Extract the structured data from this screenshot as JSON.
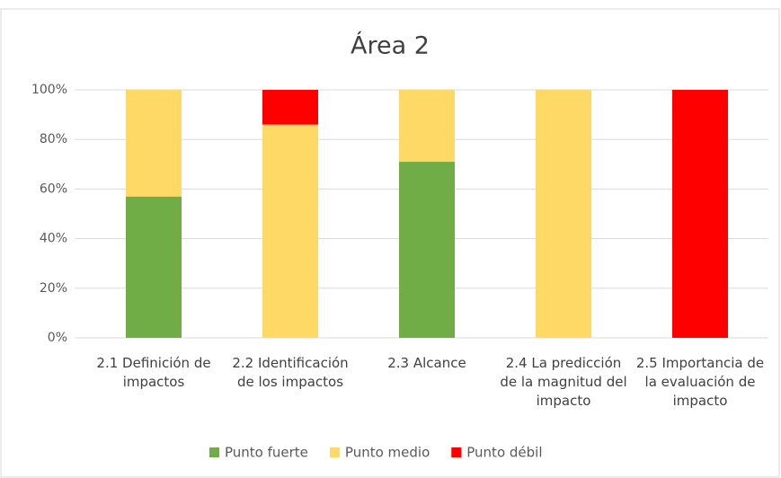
{
  "chart_data": {
    "type": "stacked_bar",
    "title": "Área 2",
    "categories": [
      "2.1 Definición de impactos",
      "2.2 Identificación de los impactos",
      "2.3 Alcance",
      "2.4 La predicción de la magnitud del impacto",
      "2.5 Importancia de la evaluación de impacto"
    ],
    "series": [
      {
        "name": "Punto fuerte",
        "color": "#70ad47",
        "values": [
          57,
          0,
          71,
          0,
          0
        ]
      },
      {
        "name": "Punto medio",
        "color": "#ffd966",
        "values": [
          43,
          86,
          29,
          100,
          0
        ]
      },
      {
        "name": "Punto débil",
        "color": "#ff0000",
        "values": [
          0,
          14,
          0,
          0,
          100
        ]
      }
    ],
    "ylim": [
      0,
      100
    ],
    "yticks": [
      {
        "value": 0,
        "label": "0%"
      },
      {
        "value": 20,
        "label": "20%"
      },
      {
        "value": 40,
        "label": "40%"
      },
      {
        "value": 60,
        "label": "60%"
      },
      {
        "value": 80,
        "label": "80%"
      },
      {
        "value": 100,
        "label": "100%"
      }
    ],
    "grid": true,
    "legend": "bottom"
  }
}
